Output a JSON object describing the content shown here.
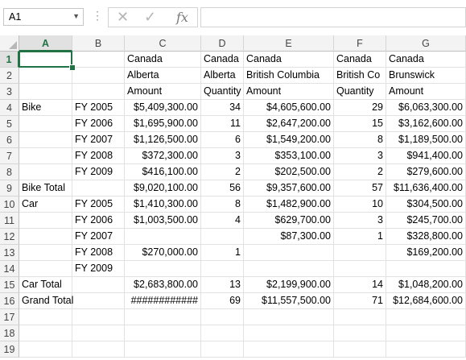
{
  "formula_bar": {
    "name_box": "A1",
    "cancel_icon": "x-icon",
    "enter_icon": "checkmark-icon",
    "function_label": "fx",
    "formula": ""
  },
  "columns": [
    "A",
    "B",
    "C",
    "D",
    "E",
    "F",
    "G"
  ],
  "rows": [
    "1",
    "2",
    "3",
    "4",
    "5",
    "6",
    "7",
    "8",
    "9",
    "10",
    "11",
    "12",
    "13",
    "14",
    "15",
    "16",
    "17",
    "18",
    "19"
  ],
  "cells": [
    [
      "",
      "",
      "Canada",
      "Canada",
      "Canada",
      "Canada",
      "Canada"
    ],
    [
      "",
      "",
      "Alberta",
      "Alberta",
      "British Columbia",
      "British Co",
      "Brunswick"
    ],
    [
      "",
      "",
      "Amount",
      "Quantity",
      "Amount",
      "Quantity",
      "Amount"
    ],
    [
      "Bike",
      "FY 2005",
      "$5,409,300.00",
      "34",
      "$4,605,600.00",
      "29",
      "$6,063,300.00"
    ],
    [
      "",
      "FY 2006",
      "$1,695,900.00",
      "11",
      "$2,647,200.00",
      "15",
      "$3,162,600.00"
    ],
    [
      "",
      "FY 2007",
      "$1,126,500.00",
      "6",
      "$1,549,200.00",
      "8",
      "$1,189,500.00"
    ],
    [
      "",
      "FY 2008",
      "$372,300.00",
      "3",
      "$353,100.00",
      "3",
      "$941,400.00"
    ],
    [
      "",
      "FY 2009",
      "$416,100.00",
      "2",
      "$202,500.00",
      "2",
      "$279,600.00"
    ],
    [
      "Bike Total",
      "",
      "$9,020,100.00",
      "56",
      "$9,357,600.00",
      "57",
      "$11,636,400.00"
    ],
    [
      "Car",
      "FY 2005",
      "$1,410,300.00",
      "8",
      "$1,482,900.00",
      "10",
      "$304,500.00"
    ],
    [
      "",
      "FY 2006",
      "$1,003,500.00",
      "4",
      "$629,700.00",
      "3",
      "$245,700.00"
    ],
    [
      "",
      "FY 2007",
      "",
      "",
      "$87,300.00",
      "1",
      "$328,800.00"
    ],
    [
      "",
      "FY 2008",
      "$270,000.00",
      "1",
      "",
      "",
      "$169,200.00"
    ],
    [
      "",
      "FY 2009",
      "",
      "",
      "",
      "",
      ""
    ],
    [
      "Car Total",
      "",
      "$2,683,800.00",
      "13",
      "$2,199,900.00",
      "14",
      "$1,048,200.00"
    ],
    [
      "Grand Total",
      "",
      "############",
      "69",
      "$11,557,500.00",
      "71",
      "$12,684,600.00"
    ],
    [
      "",
      "",
      "",
      "",
      "",
      "",
      ""
    ],
    [
      "",
      "",
      "",
      "",
      "",
      "",
      ""
    ],
    [
      "",
      "",
      "",
      "",
      "",
      "",
      ""
    ]
  ],
  "selected_cell": "A1",
  "accent_color": "#217346"
}
